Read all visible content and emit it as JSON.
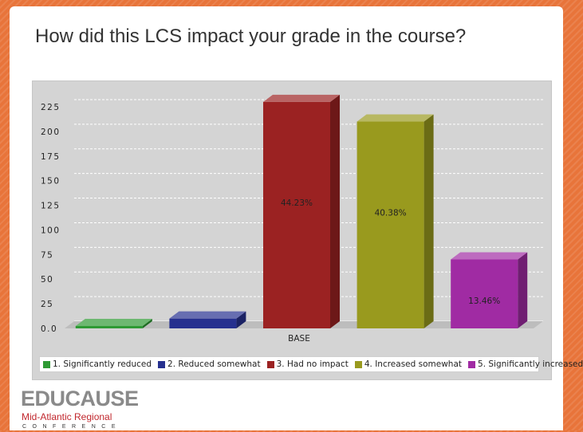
{
  "slide": {
    "title": "How did this LCS impact your grade in the course?"
  },
  "chart_data": {
    "type": "bar",
    "categories": [
      "BASE"
    ],
    "series": [
      {
        "name": "1. Significantly reduced",
        "value": 0,
        "label": "",
        "color": "#2e9a34"
      },
      {
        "name": "2. Reduced somewhat",
        "value": 10,
        "label": "",
        "color": "#26308f"
      },
      {
        "name": "3. Had no impact",
        "value": 230,
        "label": "44.23%",
        "color": "#9b2222"
      },
      {
        "name": "4. Increased somewhat",
        "value": 210,
        "label": "40.38%",
        "color": "#999a1e"
      },
      {
        "name": "5. Significantly increased",
        "value": 70,
        "label": "13.46%",
        "color": "#a02ba3"
      }
    ],
    "y_ticks": [
      "0.0",
      "25",
      "50",
      "75",
      "100",
      "125",
      "150",
      "175",
      "200",
      "225"
    ],
    "ylim": [
      0,
      225
    ],
    "grid": true,
    "legend_position": "bottom"
  },
  "logo": {
    "name": "EDUCAUSE",
    "region": "Mid-Atlantic Regional",
    "event": "CONFERENCE"
  }
}
